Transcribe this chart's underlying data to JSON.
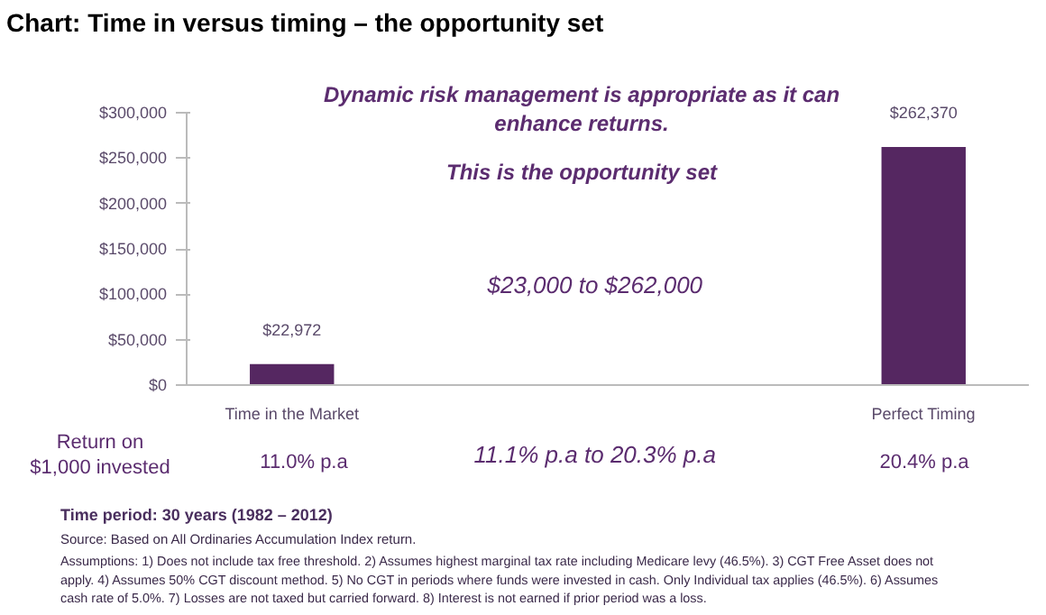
{
  "chart_data": {
    "type": "bar",
    "title": "Chart: Time in versus timing – the opportunity set",
    "categories": [
      "Time in the Market",
      null,
      null,
      "Perfect Timing"
    ],
    "values": [
      22972,
      null,
      null,
      262370
    ],
    "value_labels": [
      "$22,972",
      null,
      null,
      "$262,370"
    ],
    "color": "#552761",
    "ylim": [
      0,
      300000
    ],
    "yticks": [
      {
        "value": 0,
        "label": "$0"
      },
      {
        "value": 50000,
        "label": "$50,000"
      },
      {
        "value": 100000,
        "label": "$100,000"
      },
      {
        "value": 150000,
        "label": "$150,000"
      },
      {
        "value": 200000,
        "label": "$200,000"
      },
      {
        "value": 250000,
        "label": "$250,000"
      },
      {
        "value": 300000,
        "label": "$300,000"
      }
    ],
    "grid": false,
    "annotations": [
      "Dynamic risk management is appropriate as it can\nenhance returns.",
      "This is the opportunity set",
      "$23,000  to  $262,000",
      "Return on\n$1,000 invested",
      "11.0% p.a",
      "11.1% p.a  to  20.3% p.a",
      "20.4% p.a",
      "Time period: 30 years (1982 – 2012)",
      "Source: Based on All Ordinaries Accumulation Index return.",
      "Assumptions: 1) Does not include tax  free threshold. 2) Assumes highest marginal tax rate including Medicare levy (46.5%). 3) CGT Free Asset does not apply. 4) Assumes 50% CGT discount method. 5) No CGT in periods where funds were invested in cash. Only Individual tax applies (46.5%). 6) Assumes cash rate of 5.0%. 7) Losses are not taxed but carried forward. 8) Interest is not earned if prior period was a loss."
    ]
  }
}
